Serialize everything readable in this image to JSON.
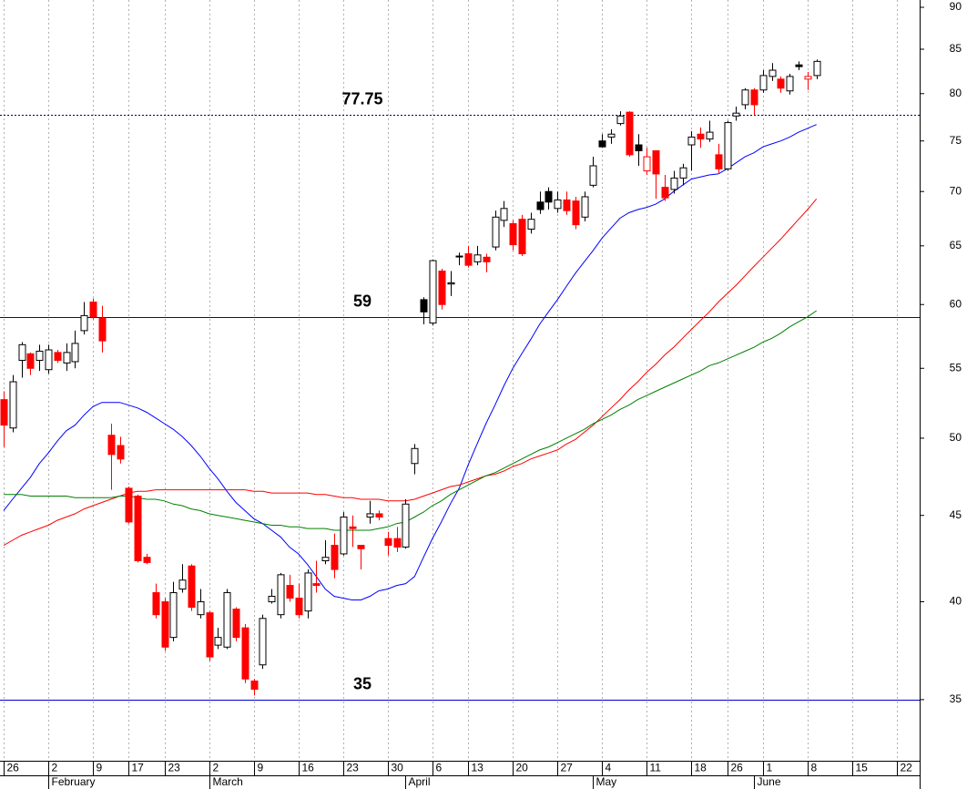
{
  "chart_data": {
    "type": "candlestick",
    "log_scale": true,
    "grid_x": true,
    "ylim": [
      32.2,
      90.9
    ],
    "yticks": [
      35,
      40,
      45,
      50,
      55,
      60,
      65,
      70,
      75,
      80,
      85,
      90
    ],
    "colors": {
      "up": "#000000",
      "down": "#ff0000",
      "hollow": "#ffffff"
    },
    "categories": [
      "26",
      null,
      null,
      null,
      null,
      "2",
      null,
      null,
      null,
      null,
      "9",
      null,
      null,
      null,
      "17",
      null,
      null,
      null,
      "23",
      null,
      null,
      null,
      null,
      "2",
      null,
      null,
      null,
      null,
      "9",
      null,
      null,
      null,
      null,
      "16",
      null,
      null,
      null,
      null,
      "23",
      null,
      null,
      null,
      null,
      "30",
      null,
      null,
      null,
      null,
      "6",
      null,
      null,
      null,
      "13",
      null,
      null,
      null,
      null,
      "20",
      null,
      null,
      null,
      null,
      "27",
      null,
      null,
      null,
      null,
      "4",
      null,
      null,
      null,
      null,
      "11",
      null,
      null,
      null,
      null,
      "18",
      null,
      null,
      null,
      "26",
      null,
      null,
      null,
      "1",
      null,
      null,
      null,
      null,
      "8",
      null,
      null,
      null,
      null,
      "15",
      null,
      null,
      null,
      null,
      "22",
      null,
      null
    ],
    "months": [
      null,
      null,
      null,
      null,
      null,
      "February",
      null,
      null,
      null,
      null,
      null,
      null,
      null,
      null,
      null,
      null,
      null,
      null,
      null,
      null,
      null,
      null,
      null,
      "March",
      null,
      null,
      null,
      null,
      null,
      null,
      null,
      null,
      null,
      null,
      null,
      null,
      null,
      null,
      null,
      null,
      null,
      null,
      null,
      null,
      null,
      "April",
      null,
      null,
      null,
      null,
      null,
      null,
      null,
      null,
      null,
      null,
      null,
      null,
      null,
      null,
      null,
      null,
      null,
      null,
      null,
      null,
      "May",
      null,
      null,
      null,
      null,
      null,
      null,
      null,
      null,
      null,
      null,
      null,
      null,
      null,
      null,
      null,
      null,
      null,
      "June",
      null,
      null,
      null,
      null,
      null,
      null,
      null,
      null,
      null,
      null,
      null,
      null,
      null,
      null,
      null,
      null,
      null
    ],
    "open": [
      52.7,
      50.7,
      55.6,
      56.1,
      55.6,
      54.9,
      56.2,
      55.4,
      55.5,
      57.9,
      60.2,
      58.9,
      50.2,
      49.5,
      46.7,
      46.2,
      42.5,
      40.5,
      40.0,
      38.1,
      40.7,
      42.0,
      39.3,
      39.4,
      37.7,
      37.6,
      39.6,
      38.6,
      35.9,
      36.7,
      40.0,
      39.3,
      40.9,
      40.2,
      39.5,
      41.0,
      42.3,
      43.2,
      42.7,
      44.3,
      43.2,
      44.9,
      45.1,
      43.6,
      43.6,
      43.1,
      48.3,
      60.4,
      58.5,
      62.8,
      61.7,
      64.1,
      64.3,
      63.6,
      64.0,
      64.9,
      67.3,
      67.0,
      67.4,
      66.5,
      69.0,
      70.0,
      68.4,
      69.2,
      69.1,
      67.6,
      70.6,
      75.0,
      75.4,
      76.8,
      78.0,
      74.6,
      72.0,
      74.0,
      70.4,
      70.2,
      71.3,
      74.6,
      75.7,
      75.2,
      73.6,
      72.2,
      77.6,
      78.8,
      80.4,
      80.4,
      81.9,
      81.6,
      80.3,
      83.2,
      81.6,
      82.0,
      null,
      null,
      null,
      null,
      null,
      null,
      null,
      null,
      null,
      null,
      null
    ],
    "high": [
      53.3,
      54.5,
      57.0,
      56.2,
      56.8,
      56.8,
      56.4,
      56.9,
      57.9,
      60.2,
      60.5,
      59.9,
      51.0,
      50.1,
      46.8,
      46.3,
      42.7,
      41.0,
      40.2,
      41.1,
      42.1,
      42.1,
      40.7,
      39.5,
      38.6,
      40.7,
      39.7,
      38.8,
      36.0,
      39.3,
      40.7,
      41.6,
      41.5,
      41.0,
      41.8,
      42.3,
      43.5,
      43.9,
      45.2,
      45.0,
      43.2,
      45.9,
      45.3,
      44.0,
      44.3,
      46.0,
      49.6,
      60.6,
      63.8,
      63.0,
      62.8,
      64.4,
      65.0,
      65.0,
      64.3,
      68.2,
      69.1,
      67.3,
      67.8,
      68.0,
      70.0,
      70.4,
      70.0,
      70.0,
      69.5,
      70.0,
      73.4,
      75.7,
      76.2,
      78.1,
      78.1,
      75.7,
      74.3,
      74.0,
      71.6,
      72.0,
      72.7,
      76.0,
      76.4,
      77.1,
      74.7,
      77.1,
      78.6,
      80.6,
      80.6,
      82.6,
      83.4,
      81.9,
      82.2,
      83.6,
      82.4,
      83.8,
      null,
      null,
      null,
      null,
      null,
      null,
      null,
      null,
      null,
      null,
      null
    ],
    "low": [
      49.4,
      50.4,
      54.3,
      54.5,
      54.8,
      54.6,
      55.4,
      54.8,
      55.0,
      57.6,
      58.8,
      56.2,
      46.6,
      48.3,
      44.5,
      42.2,
      42.1,
      39.1,
      37.4,
      37.9,
      40.5,
      39.5,
      39.1,
      36.9,
      37.5,
      37.5,
      37.9,
      35.8,
      35.2,
      36.5,
      39.9,
      39.1,
      40.0,
      39.1,
      39.1,
      40.5,
      42.1,
      41.3,
      42.6,
      43.1,
      41.8,
      44.5,
      44.7,
      42.6,
      42.8,
      43.0,
      47.6,
      58.4,
      58.3,
      59.6,
      60.7,
      63.3,
      63.1,
      63.3,
      62.7,
      64.6,
      66.7,
      64.6,
      64.1,
      66.1,
      67.9,
      68.3,
      68.0,
      67.8,
      66.5,
      67.2,
      70.4,
      74.3,
      74.7,
      76.6,
      73.4,
      72.5,
      71.6,
      69.3,
      69.1,
      69.8,
      70.6,
      72.0,
      74.3,
      74.9,
      71.8,
      72.0,
      77.1,
      78.3,
      77.7,
      80.1,
      81.4,
      80.1,
      79.9,
      82.6,
      80.4,
      81.6,
      null,
      null,
      null,
      null,
      null,
      null,
      null,
      null,
      null,
      null,
      null
    ],
    "close": [
      50.9,
      54.0,
      56.8,
      55.0,
      56.3,
      56.4,
      55.6,
      56.2,
      56.9,
      59.1,
      59.0,
      57.1,
      48.9,
      48.6,
      44.6,
      42.3,
      42.2,
      39.3,
      37.6,
      40.5,
      41.2,
      39.7,
      40.0,
      37.1,
      38.1,
      40.5,
      38.1,
      36.0,
      35.5,
      39.1,
      40.3,
      41.5,
      40.2,
      39.3,
      41.6,
      40.9,
      42.5,
      41.8,
      44.9,
      44.2,
      43.0,
      45.1,
      44.9,
      43.2,
      43.1,
      45.7,
      49.3,
      59.4,
      63.7,
      60.0,
      61.8,
      64.1,
      63.3,
      64.2,
      63.6,
      67.6,
      68.4,
      65.1,
      64.3,
      67.4,
      68.3,
      69.0,
      69.2,
      68.2,
      66.9,
      69.5,
      72.5,
      74.4,
      75.7,
      77.6,
      73.6,
      74.0,
      73.4,
      71.7,
      69.4,
      71.3,
      72.3,
      75.4,
      75.2,
      75.9,
      72.2,
      76.9,
      77.9,
      80.4,
      78.8,
      82.0,
      82.6,
      80.6,
      81.9,
      83.0,
      81.9,
      83.6,
      null,
      null,
      null,
      null,
      null,
      null,
      null,
      null,
      null,
      null,
      null
    ],
    "moving_averages": [
      {
        "color": "#0000ff",
        "values": [
          45.3,
          46.0,
          46.7,
          47.4,
          48.3,
          49.0,
          49.8,
          50.5,
          50.9,
          51.6,
          52.2,
          52.5,
          52.5,
          52.5,
          52.3,
          52.1,
          51.8,
          51.4,
          51.0,
          50.6,
          50.1,
          49.5,
          48.8,
          48.0,
          47.3,
          46.5,
          45.8,
          45.3,
          44.8,
          44.5,
          44.1,
          43.7,
          43.1,
          42.7,
          42.1,
          41.4,
          40.7,
          40.3,
          40.2,
          40.1,
          40.1,
          40.3,
          40.6,
          40.7,
          40.9,
          41.0,
          41.4,
          42.5,
          43.6,
          44.6,
          45.7,
          46.7,
          48.2,
          49.6,
          51.0,
          52.3,
          53.7,
          55.0,
          56.1,
          57.2,
          58.4,
          59.4,
          60.4,
          61.5,
          62.6,
          63.6,
          64.6,
          65.7,
          66.6,
          67.5,
          68.0,
          68.3,
          68.5,
          68.8,
          69.3,
          70.0,
          70.6,
          71.2,
          71.4,
          71.6,
          71.7,
          72.2,
          72.8,
          73.4,
          73.8,
          74.4,
          74.7,
          75.0,
          75.4,
          75.9,
          76.3,
          76.7,
          null,
          null,
          null,
          null,
          null,
          null,
          null,
          null,
          null,
          null,
          null
        ]
      },
      {
        "color": "#ff0000",
        "values": [
          43.2,
          43.5,
          43.8,
          44.0,
          44.2,
          44.4,
          44.7,
          44.9,
          45.1,
          45.4,
          45.6,
          45.8,
          46.0,
          46.2,
          46.4,
          46.5,
          46.5,
          46.6,
          46.6,
          46.6,
          46.6,
          46.6,
          46.6,
          46.6,
          46.6,
          46.6,
          46.6,
          46.6,
          46.5,
          46.5,
          46.4,
          46.4,
          46.4,
          46.4,
          46.4,
          46.3,
          46.3,
          46.2,
          46.1,
          46.1,
          46.0,
          46.0,
          46.0,
          45.9,
          45.9,
          45.9,
          46.0,
          46.2,
          46.4,
          46.6,
          46.8,
          46.9,
          47.1,
          47.3,
          47.5,
          47.6,
          47.8,
          48.1,
          48.3,
          48.6,
          48.8,
          49.0,
          49.2,
          49.6,
          49.9,
          50.4,
          50.9,
          51.5,
          52.1,
          52.7,
          53.4,
          54.0,
          54.7,
          55.3,
          56.0,
          56.6,
          57.3,
          58.0,
          58.7,
          59.4,
          60.2,
          60.9,
          61.6,
          62.4,
          63.2,
          64.0,
          64.8,
          65.6,
          66.5,
          67.4,
          68.3,
          69.3,
          null,
          null,
          null,
          null,
          null,
          null,
          null,
          null,
          null,
          null,
          null
        ]
      },
      {
        "color": "#008000",
        "values": [
          46.3,
          46.3,
          46.3,
          46.2,
          46.2,
          46.2,
          46.2,
          46.2,
          46.1,
          46.1,
          46.1,
          46.1,
          46.1,
          46.2,
          46.2,
          46.1,
          46.0,
          46.0,
          45.9,
          45.7,
          45.6,
          45.4,
          45.3,
          45.1,
          45.0,
          44.9,
          44.8,
          44.7,
          44.6,
          44.5,
          44.4,
          44.4,
          44.3,
          44.3,
          44.2,
          44.2,
          44.2,
          44.1,
          44.1,
          44.1,
          44.1,
          44.1,
          44.2,
          44.3,
          44.5,
          44.6,
          44.9,
          45.2,
          45.6,
          45.9,
          46.3,
          46.6,
          46.9,
          47.2,
          47.5,
          47.7,
          48.0,
          48.3,
          48.6,
          48.9,
          49.2,
          49.4,
          49.7,
          50.0,
          50.3,
          50.6,
          51.0,
          51.3,
          51.6,
          52.0,
          52.3,
          52.7,
          53.0,
          53.3,
          53.6,
          53.9,
          54.2,
          54.5,
          54.8,
          55.2,
          55.4,
          55.7,
          56.0,
          56.3,
          56.6,
          57.0,
          57.3,
          57.7,
          58.2,
          58.6,
          59.0,
          59.5,
          null,
          null,
          null,
          null,
          null,
          null,
          null,
          null,
          null,
          null,
          null
        ]
      }
    ],
    "hlines": [
      {
        "value": 77.75,
        "color": "#000066",
        "dash": true
      },
      {
        "value": 59,
        "color": "#0000cc",
        "dash": false
      },
      {
        "value": 35,
        "color": "#0000cc",
        "dash": false
      }
    ],
    "hline_label_color": "#0000ff"
  }
}
